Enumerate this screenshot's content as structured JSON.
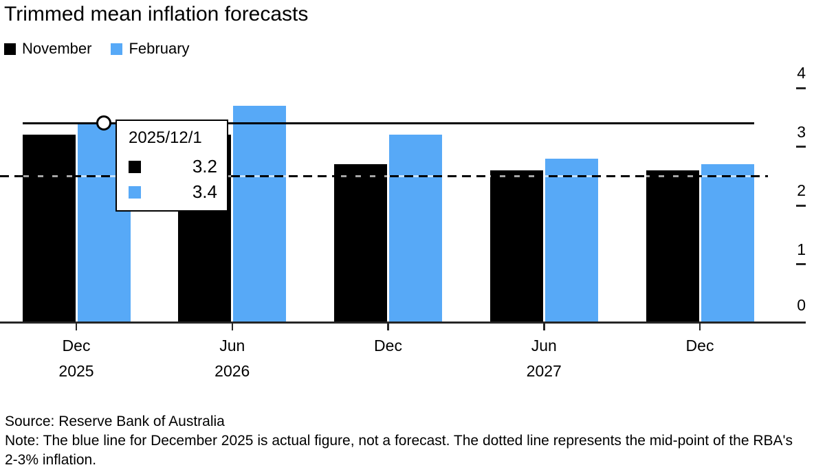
{
  "title": "Trimmed mean inflation forecasts",
  "colors": {
    "november": "#000000",
    "february": "#57a9f7",
    "axis": "#262626",
    "background": "#ffffff"
  },
  "legend": [
    {
      "label": "November",
      "color": "#000000"
    },
    {
      "label": "February",
      "color": "#57a9f7"
    }
  ],
  "chart_data": {
    "type": "bar",
    "title": "Trimmed mean inflation forecasts",
    "categories": [
      "Dec 2025",
      "Jun 2026",
      "Dec 2026",
      "Jun 2027",
      "Dec 2027"
    ],
    "x_tick_labels": [
      {
        "month": "Dec",
        "year": "2025"
      },
      {
        "month": "Jun",
        "year": "2026"
      },
      {
        "month": "Dec",
        "year": ""
      },
      {
        "month": "Jun",
        "year": "2027"
      },
      {
        "month": "Dec",
        "year": ""
      }
    ],
    "series": [
      {
        "name": "November",
        "color": "#000000",
        "values": [
          3.2,
          3.2,
          2.7,
          2.6,
          2.6
        ]
      },
      {
        "name": "February",
        "color": "#57a9f7",
        "values": [
          3.4,
          3.7,
          3.2,
          2.8,
          2.7
        ]
      }
    ],
    "ylim": [
      0,
      4
    ],
    "yticks": [
      0,
      1,
      2,
      3,
      4
    ],
    "y_axis_side": "right",
    "grid": false,
    "legend_position": "top-left",
    "reference_lines": [
      {
        "style": "solid",
        "value": 3.4,
        "label": "December 2025 actual figure",
        "marker_category": "Dec 2025"
      },
      {
        "style": "dashed",
        "value": 2.5,
        "label": "mid-point of the RBA's 2-3% inflation"
      }
    ]
  },
  "tooltip": {
    "date": "2025/12/1",
    "rows": [
      {
        "series": "November",
        "color": "#000000",
        "value": "3.2"
      },
      {
        "series": "February",
        "color": "#57a9f7",
        "value": "3.4"
      }
    ]
  },
  "footer": {
    "source": "Source: Reserve Bank of Australia",
    "note": "Note: The blue line for December 2025 is actual figure, not a forecast. The dotted line represents the mid-point of the RBA's 2-3% inflation."
  }
}
